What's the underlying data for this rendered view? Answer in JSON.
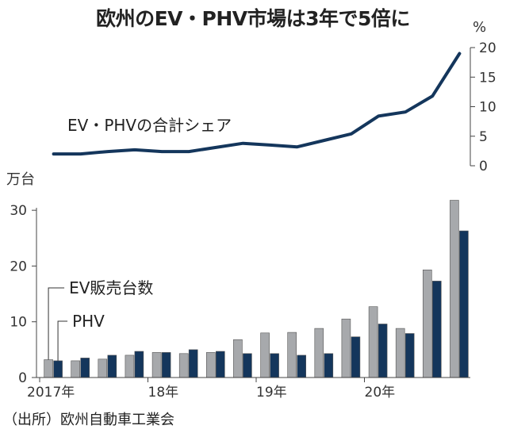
{
  "title": "欧州のEV・PHV市場は3年で5倍に",
  "source": "（出所）欧州自動車工業会",
  "chart_data": [
    {
      "type": "line",
      "series": [
        {
          "name": "EV・PHVの合計シェア",
          "values": [
            2.0,
            2.0,
            2.4,
            2.7,
            2.4,
            2.4,
            3.1,
            3.8,
            3.5,
            3.2,
            4.3,
            5.4,
            8.4,
            9.1,
            11.8,
            19.0
          ]
        }
      ],
      "yunit": "%",
      "ylim": [
        0,
        20
      ],
      "yticks": [
        0,
        5,
        10,
        15,
        20
      ],
      "color": "#14365c"
    },
    {
      "type": "bar",
      "yunit": "万台",
      "ylim": [
        0,
        35
      ],
      "yticks": [
        0,
        10,
        20,
        30
      ],
      "xtick_labels": [
        {
          "index": 0,
          "label": "2017年"
        },
        {
          "index": 4,
          "label": "18年"
        },
        {
          "index": 8,
          "label": "19年"
        },
        {
          "index": 12,
          "label": "20年"
        }
      ],
      "series": [
        {
          "name": "EV販売台数",
          "color": "#a7a9ac",
          "values": [
            3.2,
            3.0,
            3.3,
            4.0,
            4.5,
            4.3,
            4.5,
            6.8,
            8.0,
            8.1,
            8.8,
            10.5,
            12.7,
            8.8,
            19.3,
            31.8
          ]
        },
        {
          "name": "PHV",
          "color": "#14365c",
          "values": [
            3.0,
            3.5,
            4.0,
            4.7,
            4.5,
            5.0,
            4.7,
            4.3,
            4.3,
            4.0,
            4.3,
            7.3,
            9.6,
            7.9,
            17.3,
            26.3
          ]
        }
      ]
    }
  ]
}
